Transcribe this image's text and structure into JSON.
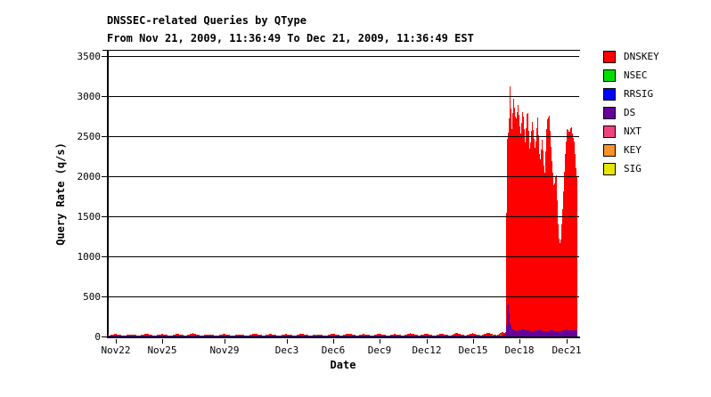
{
  "header": {
    "title": "DNSSEC-related Queries by QType",
    "subtitle": "From Nov 21, 2009, 11:36:49 To Dec 21, 2009, 11:36:49 EST"
  },
  "legend": {
    "items": [
      {
        "label": "DNSKEY",
        "color": "#FF0000"
      },
      {
        "label": "NSEC",
        "color": "#00E000"
      },
      {
        "label": "RRSIG",
        "color": "#0000FF"
      },
      {
        "label": "DS",
        "color": "#660099"
      },
      {
        "label": "NXT",
        "color": "#F0437E"
      },
      {
        "label": "KEY",
        "color": "#F89329"
      },
      {
        "label": "SIG",
        "color": "#E6E600"
      }
    ]
  },
  "chart_data": {
    "type": "area",
    "stacked": true,
    "title": "DNSSEC-related Queries by QType",
    "subtitle": "From Nov 21, 2009, 11:36:49 To Dec 21, 2009, 11:36:49 EST",
    "xlabel": "Date",
    "ylabel": "Query Rate (q/s)",
    "ylim": [
      0,
      3500
    ],
    "y_ticks": [
      0,
      500,
      1000,
      1500,
      2000,
      2500,
      3000,
      3500
    ],
    "grid": true,
    "legend_position": "right",
    "x_unit": "days since Nov 21, 2009 11:36:49 EST",
    "x_domain_days": [
      0,
      30.35
    ],
    "x_ticks": [
      {
        "label": "Nov22",
        "d": 0.52
      },
      {
        "label": "Nov25",
        "d": 3.52
      },
      {
        "label": "Nov29",
        "d": 7.52
      },
      {
        "label": "Dec3",
        "d": 11.52
      },
      {
        "label": "Dec6",
        "d": 14.52
      },
      {
        "label": "Dec9",
        "d": 17.52
      },
      {
        "label": "Dec12",
        "d": 20.52
      },
      {
        "label": "Dec15",
        "d": 23.52
      },
      {
        "label": "Dec18",
        "d": 26.52
      },
      {
        "label": "Dec21",
        "d": 29.52
      }
    ],
    "series": [
      {
        "name": "DNSKEY",
        "color": "#FF0000",
        "render": "columns",
        "points": [
          [
            0,
            20
          ],
          [
            0.05,
            12
          ],
          [
            0.45,
            32
          ],
          [
            0.8,
            18
          ],
          [
            1.05,
            12
          ],
          [
            1.45,
            28
          ],
          [
            1.8,
            16
          ],
          [
            2.05,
            13
          ],
          [
            2.45,
            36
          ],
          [
            2.8,
            18
          ],
          [
            3.05,
            12
          ],
          [
            3.45,
            30
          ],
          [
            3.8,
            17
          ],
          [
            4.05,
            12
          ],
          [
            4.45,
            34
          ],
          [
            4.8,
            18
          ],
          [
            5.05,
            13
          ],
          [
            5.45,
            40
          ],
          [
            5.8,
            20
          ],
          [
            6.05,
            12
          ],
          [
            6.45,
            28
          ],
          [
            6.8,
            16
          ],
          [
            7.05,
            12
          ],
          [
            7.45,
            33
          ],
          [
            7.8,
            18
          ],
          [
            8.05,
            11
          ],
          [
            8.45,
            26
          ],
          [
            8.8,
            15
          ],
          [
            9.05,
            12
          ],
          [
            9.45,
            38
          ],
          [
            9.8,
            19
          ],
          [
            10.05,
            12
          ],
          [
            10.45,
            32
          ],
          [
            10.8,
            17
          ],
          [
            11.05,
            12
          ],
          [
            11.45,
            30
          ],
          [
            11.8,
            17
          ],
          [
            12.05,
            13
          ],
          [
            12.45,
            36
          ],
          [
            12.8,
            18
          ],
          [
            13.05,
            12
          ],
          [
            13.45,
            28
          ],
          [
            13.8,
            16
          ],
          [
            14.05,
            12
          ],
          [
            14.45,
            34
          ],
          [
            14.8,
            18
          ],
          [
            15.05,
            13
          ],
          [
            15.45,
            40
          ],
          [
            15.8,
            20
          ],
          [
            16.05,
            12
          ],
          [
            16.45,
            30
          ],
          [
            16.8,
            17
          ],
          [
            17.05,
            12
          ],
          [
            17.45,
            36
          ],
          [
            17.8,
            18
          ],
          [
            18.05,
            12
          ],
          [
            18.45,
            31
          ],
          [
            18.8,
            17
          ],
          [
            19.05,
            13
          ],
          [
            19.45,
            42
          ],
          [
            19.8,
            21
          ],
          [
            20.05,
            12
          ],
          [
            20.45,
            35
          ],
          [
            20.8,
            18
          ],
          [
            21.05,
            12
          ],
          [
            21.45,
            35
          ],
          [
            21.8,
            18
          ],
          [
            22.05,
            13
          ],
          [
            22.45,
            45
          ],
          [
            22.8,
            22
          ],
          [
            23.05,
            13
          ],
          [
            23.45,
            40
          ],
          [
            23.8,
            20
          ],
          [
            24.05,
            14
          ],
          [
            24.45,
            50
          ],
          [
            24.8,
            24
          ],
          [
            25.05,
            14
          ],
          [
            25.35,
            55
          ],
          [
            25.55,
            45
          ],
          [
            25.62,
            60
          ],
          [
            25.66,
            2400
          ],
          [
            25.8,
            2600
          ],
          [
            25.88,
            3160
          ],
          [
            25.98,
            2550
          ],
          [
            26.1,
            2970
          ],
          [
            26.25,
            2680
          ],
          [
            26.4,
            2900
          ],
          [
            26.55,
            2500
          ],
          [
            26.7,
            2850
          ],
          [
            26.85,
            2420
          ],
          [
            27,
            2880
          ],
          [
            27.15,
            2300
          ],
          [
            27.3,
            2700
          ],
          [
            27.5,
            2320
          ],
          [
            27.65,
            2750
          ],
          [
            27.8,
            2150
          ],
          [
            27.95,
            2480
          ],
          [
            28.1,
            1980
          ],
          [
            28.25,
            2700
          ],
          [
            28.4,
            2760
          ],
          [
            28.55,
            2250
          ],
          [
            28.7,
            1850
          ],
          [
            28.85,
            2060
          ],
          [
            29,
            1250
          ],
          [
            29.12,
            1130
          ],
          [
            29.28,
            1650
          ],
          [
            29.42,
            2250
          ],
          [
            29.55,
            2600
          ],
          [
            29.7,
            2540
          ],
          [
            29.82,
            2630
          ],
          [
            29.92,
            2500
          ],
          [
            30.02,
            2420
          ],
          [
            30.12,
            2100
          ],
          [
            30.2,
            1950
          ]
        ]
      },
      {
        "name": "NSEC",
        "color": "#00E000",
        "render": "marks",
        "points": [
          [
            13.4,
            5
          ],
          [
            23.9,
            5
          ],
          [
            24.8,
            6
          ],
          [
            25.3,
            5
          ]
        ]
      },
      {
        "name": "RRSIG",
        "color": "#0000FF",
        "render": "columns",
        "points": []
      },
      {
        "name": "DS",
        "color": "#660099",
        "render": "columns",
        "points": [
          [
            0,
            7
          ],
          [
            3,
            6
          ],
          [
            6,
            7
          ],
          [
            9,
            6
          ],
          [
            12,
            7
          ],
          [
            15,
            7
          ],
          [
            18,
            8
          ],
          [
            21,
            8
          ],
          [
            23,
            9
          ],
          [
            24.5,
            12
          ],
          [
            25.3,
            15
          ],
          [
            25.55,
            18
          ],
          [
            25.62,
            40
          ],
          [
            25.7,
            380
          ],
          [
            25.78,
            410
          ],
          [
            25.85,
            180
          ],
          [
            26,
            90
          ],
          [
            26.3,
            70
          ],
          [
            26.7,
            85
          ],
          [
            27,
            80
          ],
          [
            27.3,
            65
          ],
          [
            27.6,
            80
          ],
          [
            27.9,
            75
          ],
          [
            28.2,
            65
          ],
          [
            28.5,
            75
          ],
          [
            28.8,
            70
          ],
          [
            29,
            60
          ],
          [
            29.2,
            70
          ],
          [
            29.5,
            88
          ],
          [
            29.8,
            72
          ],
          [
            30,
            80
          ],
          [
            30.2,
            78
          ]
        ]
      },
      {
        "name": "NXT",
        "color": "#F0437E",
        "render": "columns",
        "points": []
      },
      {
        "name": "KEY",
        "color": "#F89329",
        "render": "columns",
        "points": []
      },
      {
        "name": "SIG",
        "color": "#E6E600",
        "render": "columns",
        "points": []
      }
    ]
  }
}
